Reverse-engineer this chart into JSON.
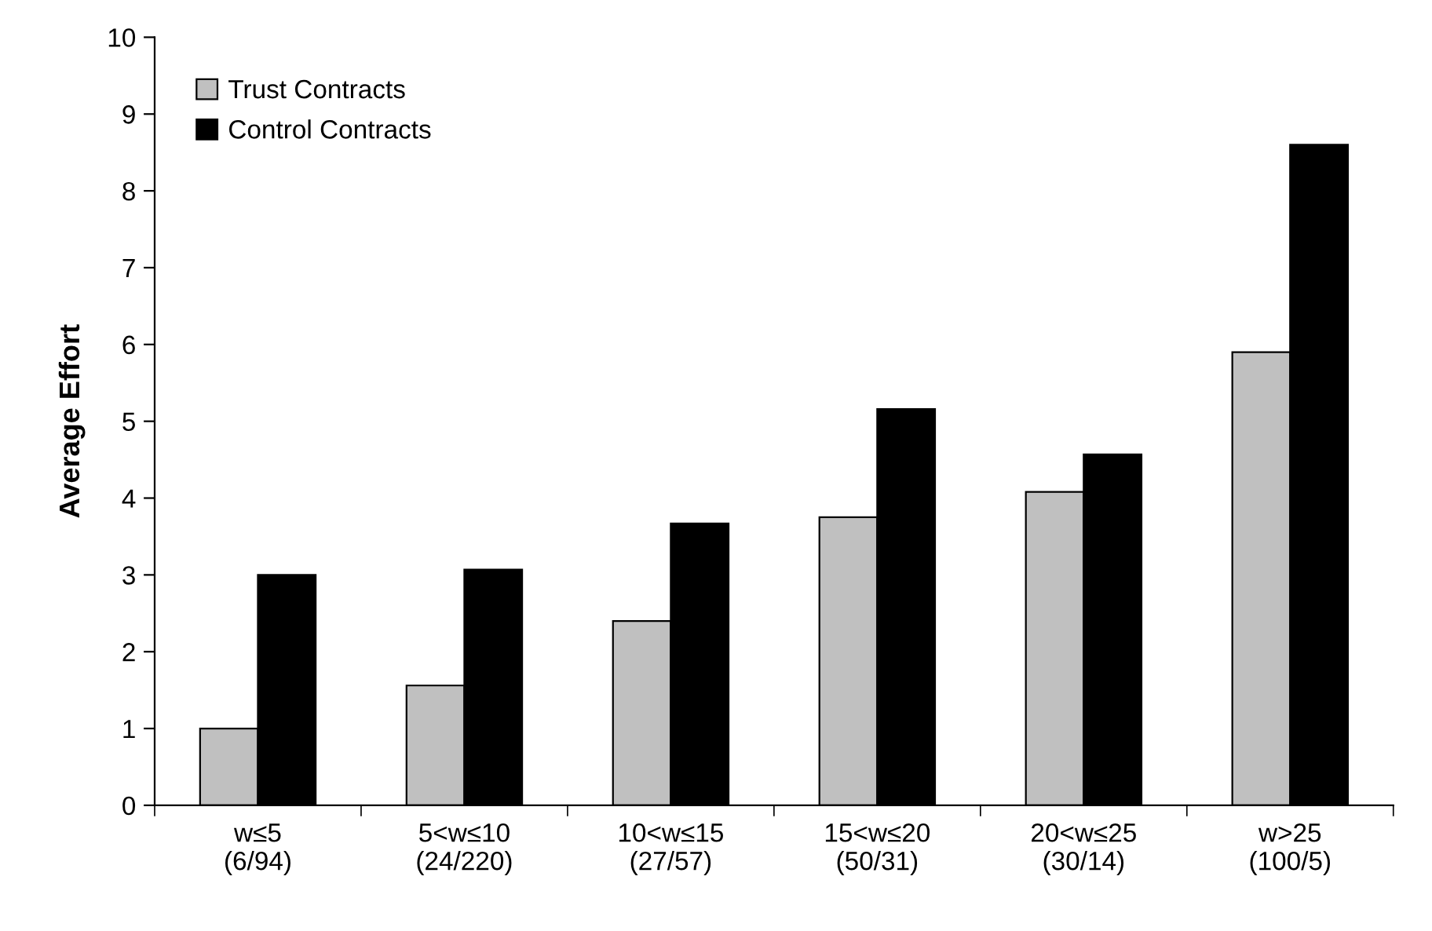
{
  "chart_data": {
    "type": "bar",
    "ylabel": "Average Effort",
    "categories": [
      "w≤5\n(6/94)",
      "5<w≤10\n(24/220)",
      "10<w≤15\n(27/57)",
      "15<w≤20\n(50/31)",
      "20<w≤25\n(30/14)",
      "w>25\n(100/5)"
    ],
    "series": [
      {
        "name": "Trust Contracts",
        "color": "#c0c0c0",
        "values": [
          1.0,
          1.56,
          2.4,
          3.75,
          4.08,
          5.9
        ]
      },
      {
        "name": "Control Contracts",
        "color": "#000000",
        "values": [
          3.0,
          3.07,
          3.67,
          5.16,
          4.57,
          8.6
        ]
      }
    ],
    "ylim": [
      0,
      10
    ],
    "yticks": [
      0,
      1,
      2,
      3,
      4,
      5,
      6,
      7,
      8,
      9,
      10
    ],
    "grid": false,
    "legend": "top left"
  }
}
